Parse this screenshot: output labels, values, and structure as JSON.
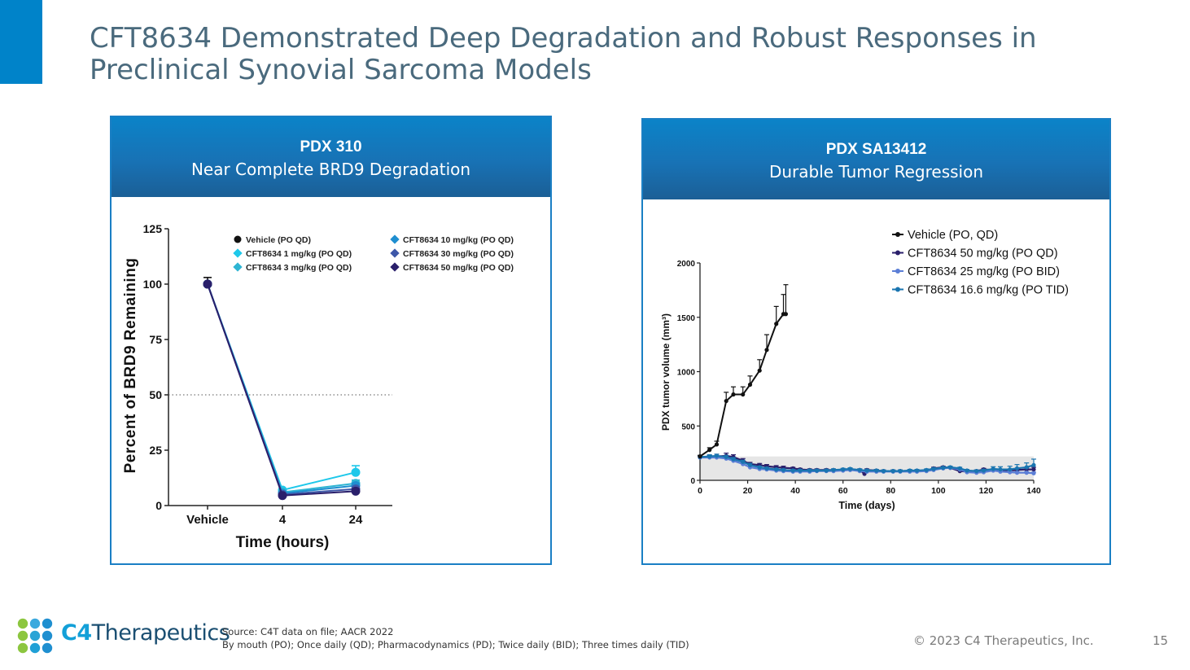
{
  "slide": {
    "title": "CFT8634 Demonstrated Deep Degradation and Robust Responses in Preclinical Synovial Sarcoma Models",
    "accent_color": "#0083c9",
    "source_line1": "Source: C4T data on file; AACR 2022",
    "source_line2": "By mouth (PO); Once daily (QD); Pharmacodynamics (PD); Twice daily (BID); Three times daily (TID)",
    "copyright": "© 2023 C4 Therapeutics, Inc.",
    "page_number": "15",
    "logo": {
      "c4": "C4",
      "rest": "Therapeutics"
    }
  },
  "left_panel": {
    "header_line1": "PDX 310",
    "header_line2": "Near Complete BRD9 Degradation"
  },
  "right_panel": {
    "header_line1": "PDX SA13412",
    "header_line2": "Durable Tumor Regression"
  },
  "chart_data": [
    {
      "type": "line",
      "title": "",
      "xlabel": "Time (hours)",
      "ylabel": "Percent of BRD9 Remaining",
      "categories": [
        "Vehicle",
        "4",
        "24"
      ],
      "yticks": [
        "0",
        "25",
        "50",
        "75",
        "100",
        "125"
      ],
      "ylim": [
        0,
        125
      ],
      "reference_line": {
        "y": 50,
        "style": "dotted"
      },
      "legend_position": "top",
      "series": [
        {
          "name": "Vehicle (PO QD)",
          "color": "#111111",
          "values": [
            100,
            null,
            null
          ],
          "err": [
            3,
            null,
            null
          ]
        },
        {
          "name": "CFT8634 1 mg/kg (PO QD)",
          "color": "#1ec8ea",
          "values": [
            100,
            7,
            15
          ],
          "err": [
            0,
            0.5,
            3
          ]
        },
        {
          "name": "CFT8634 3 mg/kg (PO QD)",
          "color": "#2fb5d3",
          "values": [
            100,
            6,
            10
          ],
          "err": [
            0,
            0.5,
            1.5
          ]
        },
        {
          "name": "CFT8634 10 mg/kg (PO QD)",
          "color": "#1e8ed0",
          "values": [
            100,
            5.5,
            9
          ],
          "err": [
            0,
            0.5,
            1
          ]
        },
        {
          "name": "CFT8634 30 mg/kg (PO QD)",
          "color": "#3d57a8",
          "values": [
            100,
            5,
            7.5
          ],
          "err": [
            0,
            0.5,
            1
          ]
        },
        {
          "name": "CFT8634 50 mg/kg (PO QD)",
          "color": "#2a1f6b",
          "values": [
            100,
            4.5,
            6.5
          ],
          "err": [
            0,
            0.5,
            1
          ]
        }
      ]
    },
    {
      "type": "line",
      "title": "",
      "xlabel": "Time (days)",
      "ylabel": "PDX tumor volume (mm³)",
      "xticks": [
        "0",
        "20",
        "40",
        "60",
        "80",
        "100",
        "120",
        "140"
      ],
      "yticks": [
        "0",
        "500",
        "1000",
        "1500",
        "2000"
      ],
      "xlim": [
        0,
        140
      ],
      "ylim": [
        0,
        2000
      ],
      "shaded_band": [
        0,
        220
      ],
      "legend_position": "top-right",
      "series": [
        {
          "name": "Vehicle (PO, QD)",
          "color": "#111111",
          "x": [
            0,
            4,
            7,
            11,
            14,
            18,
            21,
            25,
            28,
            32,
            35,
            36
          ],
          "y": [
            220,
            280,
            330,
            730,
            790,
            790,
            880,
            1010,
            1200,
            1440,
            1530,
            1530
          ],
          "err": [
            10,
            20,
            30,
            80,
            70,
            70,
            80,
            100,
            140,
            160,
            180,
            270
          ]
        },
        {
          "name": "CFT8634 50 mg/kg (PO QD)",
          "color": "#2a1f6b",
          "x": [
            0,
            4,
            7,
            11,
            14,
            18,
            21,
            25,
            28,
            32,
            35,
            39,
            42,
            46,
            49,
            53,
            56,
            60,
            63,
            67,
            69,
            70,
            74,
            77,
            81,
            84,
            88,
            91,
            95,
            98,
            102,
            105,
            109,
            112,
            116,
            119,
            123,
            126,
            130,
            133,
            137,
            140
          ],
          "y": [
            210,
            215,
            220,
            225,
            215,
            180,
            150,
            140,
            130,
            120,
            115,
            110,
            100,
            95,
            95,
            95,
            95,
            95,
            100,
            95,
            60,
            95,
            90,
            85,
            85,
            85,
            85,
            85,
            90,
            110,
            120,
            115,
            85,
            80,
            85,
            100,
            95,
            90,
            90,
            95,
            100,
            100
          ],
          "err": [
            10,
            15,
            20,
            25,
            20,
            20,
            15,
            15,
            15,
            15,
            15,
            10,
            10,
            10,
            10,
            10,
            10,
            10,
            10,
            10,
            10,
            10,
            10,
            10,
            10,
            10,
            10,
            10,
            10,
            10,
            10,
            10,
            10,
            10,
            10,
            10,
            10,
            10,
            10,
            10,
            15,
            20
          ]
        },
        {
          "name": "CFT8634 25 mg/kg (PO BID)",
          "color": "#5b7ed6",
          "x": [
            0,
            4,
            7,
            11,
            14,
            18,
            21,
            25,
            28,
            32,
            35,
            39,
            42,
            46,
            49,
            53,
            56,
            60,
            63,
            67,
            70,
            74,
            77,
            81,
            84,
            88,
            91,
            95,
            98,
            102,
            105,
            109,
            112,
            116,
            119,
            123,
            126,
            130,
            133,
            137,
            140
          ],
          "y": [
            210,
            210,
            210,
            200,
            180,
            150,
            120,
            105,
            100,
            90,
            85,
            80,
            80,
            80,
            85,
            85,
            85,
            90,
            95,
            85,
            80,
            80,
            80,
            80,
            80,
            80,
            80,
            85,
            95,
            110,
            115,
            100,
            75,
            70,
            75,
            90,
            80,
            75,
            70,
            70,
            65
          ],
          "err": [
            10,
            10,
            10,
            15,
            15,
            15,
            10,
            10,
            10,
            10,
            10,
            10,
            10,
            10,
            10,
            10,
            10,
            10,
            10,
            10,
            10,
            10,
            10,
            10,
            10,
            10,
            10,
            10,
            10,
            10,
            10,
            10,
            10,
            10,
            10,
            10,
            10,
            10,
            10,
            10,
            10
          ]
        },
        {
          "name": "CFT8634 16.6 mg/kg (PO TID)",
          "color": "#1a75b0",
          "x": [
            0,
            4,
            7,
            11,
            14,
            18,
            21,
            25,
            28,
            32,
            35,
            39,
            42,
            46,
            49,
            53,
            56,
            60,
            63,
            67,
            70,
            74,
            77,
            81,
            84,
            88,
            91,
            95,
            98,
            102,
            105,
            109,
            112,
            116,
            119,
            123,
            126,
            130,
            133,
            137,
            140
          ],
          "y": [
            215,
            220,
            225,
            215,
            195,
            170,
            140,
            120,
            110,
            100,
            95,
            90,
            90,
            90,
            90,
            90,
            95,
            100,
            105,
            95,
            90,
            90,
            85,
            85,
            85,
            90,
            90,
            95,
            105,
            115,
            120,
            110,
            90,
            85,
            90,
            105,
            100,
            100,
            110,
            120,
            140
          ],
          "err": [
            10,
            15,
            15,
            15,
            15,
            15,
            15,
            10,
            10,
            10,
            10,
            10,
            10,
            10,
            10,
            10,
            10,
            10,
            10,
            10,
            10,
            10,
            10,
            10,
            10,
            10,
            10,
            10,
            10,
            10,
            10,
            10,
            10,
            10,
            10,
            20,
            25,
            30,
            35,
            40,
            55
          ]
        }
      ]
    }
  ]
}
